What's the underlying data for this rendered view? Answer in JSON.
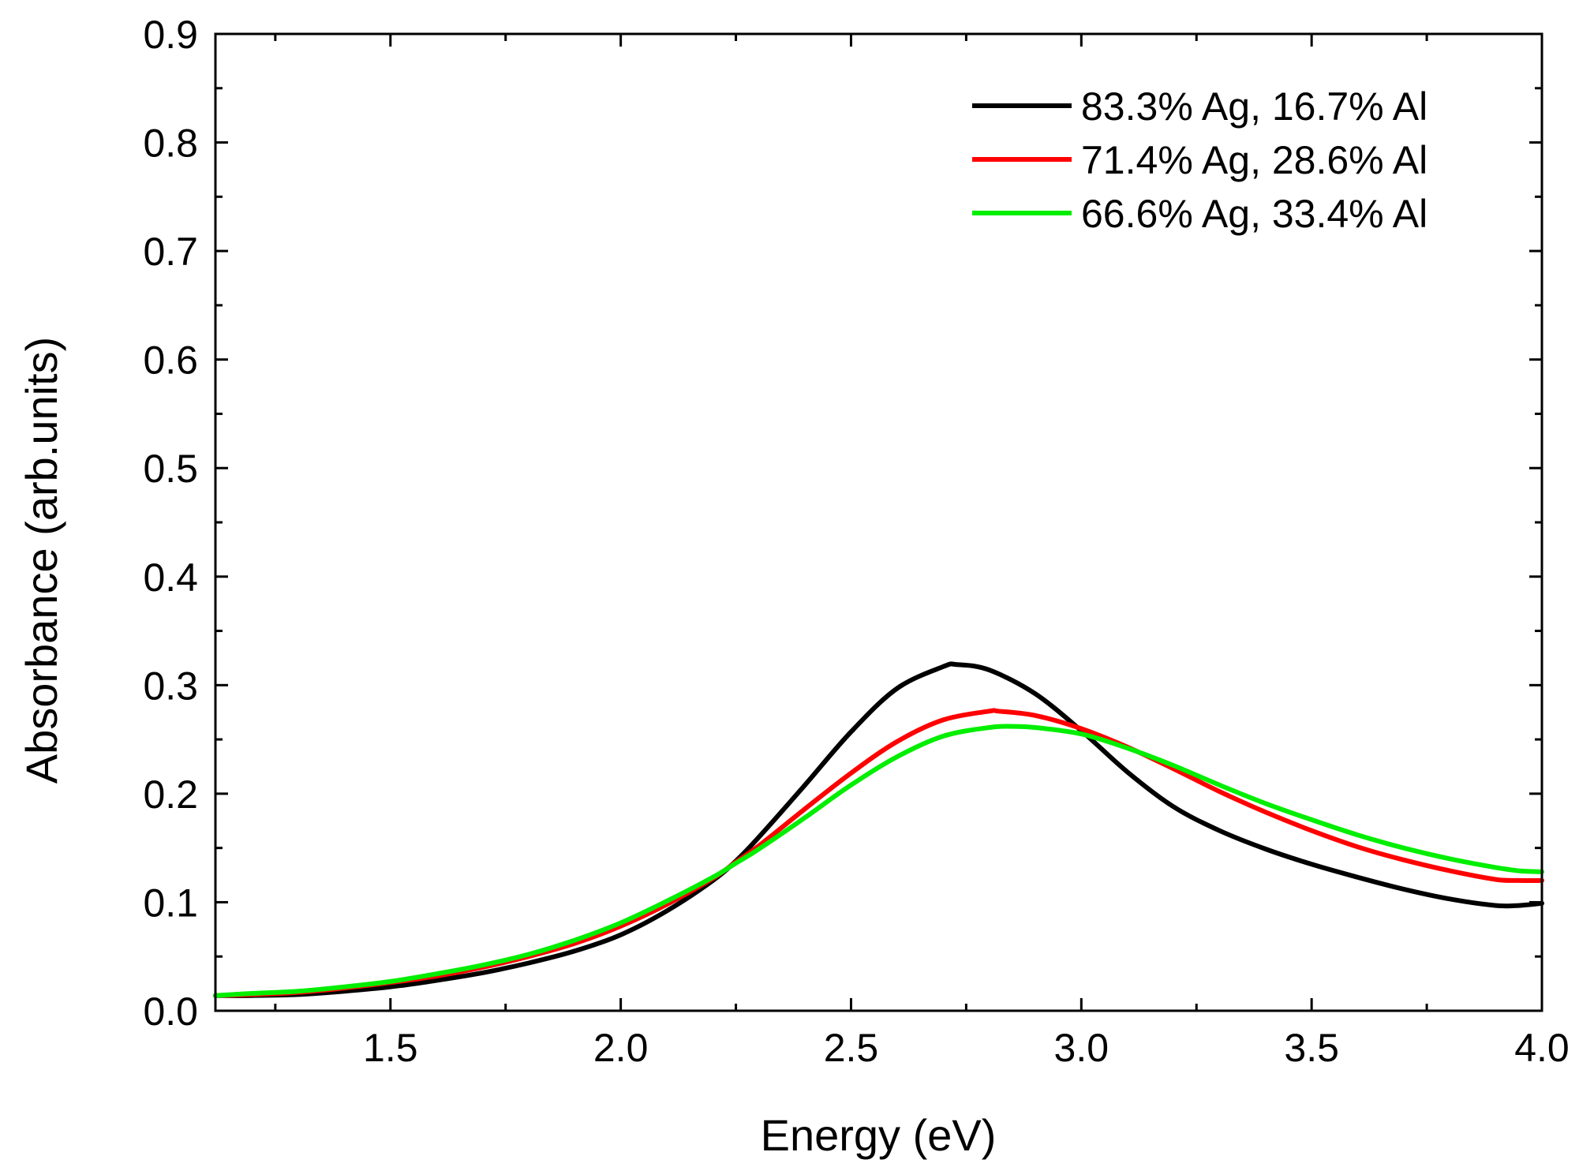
{
  "chart_data": {
    "type": "line",
    "title": "",
    "xlabel": "Energy (eV)",
    "ylabel": "Absorbance (arb.units)",
    "xlim": [
      1.12,
      4.0
    ],
    "ylim": [
      0.0,
      0.9
    ],
    "x_major_ticks": [
      1.5,
      2.0,
      2.5,
      3.0,
      3.5,
      4.0
    ],
    "x_tick_labels": [
      "1.5",
      "2.0",
      "2.5",
      "3.0",
      "3.5",
      "4.0"
    ],
    "x_minor_ticks": [
      1.25,
      1.75,
      2.25,
      2.75,
      3.25,
      3.75
    ],
    "y_major_ticks": [
      0.0,
      0.1,
      0.2,
      0.3,
      0.4,
      0.5,
      0.6,
      0.7,
      0.8,
      0.9
    ],
    "y_tick_labels": [
      "0.0",
      "0.1",
      "0.2",
      "0.3",
      "0.4",
      "0.5",
      "0.6",
      "0.7",
      "0.8",
      "0.9"
    ],
    "y_minor_ticks": [
      0.05,
      0.15,
      0.25,
      0.35,
      0.45,
      0.55,
      0.65,
      0.75,
      0.85
    ],
    "grid": false,
    "legend_position": "top-right",
    "series": [
      {
        "name": "83.3% Ag, 16.7% Al",
        "color": "#000000",
        "x": [
          1.12,
          1.2,
          1.3,
          1.4,
          1.5,
          1.6,
          1.7,
          1.8,
          1.9,
          2.0,
          2.1,
          2.2,
          2.25,
          2.3,
          2.4,
          2.5,
          2.6,
          2.7,
          2.73,
          2.8,
          2.9,
          3.0,
          3.1,
          3.2,
          3.3,
          3.4,
          3.5,
          3.6,
          3.7,
          3.8,
          3.9,
          3.95,
          4.0
        ],
        "y": [
          0.014,
          0.014,
          0.015,
          0.018,
          0.022,
          0.028,
          0.035,
          0.044,
          0.055,
          0.07,
          0.092,
          0.12,
          0.138,
          0.16,
          0.208,
          0.257,
          0.297,
          0.317,
          0.319,
          0.314,
          0.292,
          0.258,
          0.22,
          0.188,
          0.166,
          0.149,
          0.135,
          0.123,
          0.112,
          0.103,
          0.097,
          0.097,
          0.099
        ]
      },
      {
        "name": "71.4% Ag, 28.6% Al",
        "color": "#ff0000",
        "x": [
          1.12,
          1.2,
          1.3,
          1.4,
          1.5,
          1.6,
          1.7,
          1.8,
          1.9,
          2.0,
          2.1,
          2.2,
          2.25,
          2.3,
          2.4,
          2.5,
          2.6,
          2.7,
          2.8,
          2.82,
          2.9,
          3.0,
          3.1,
          3.2,
          3.3,
          3.4,
          3.5,
          3.6,
          3.7,
          3.8,
          3.9,
          3.95,
          4.0
        ],
        "y": [
          0.014,
          0.015,
          0.017,
          0.021,
          0.026,
          0.032,
          0.04,
          0.05,
          0.062,
          0.078,
          0.098,
          0.122,
          0.137,
          0.152,
          0.186,
          0.219,
          0.248,
          0.268,
          0.276,
          0.276,
          0.272,
          0.26,
          0.243,
          0.223,
          0.202,
          0.183,
          0.166,
          0.151,
          0.139,
          0.129,
          0.121,
          0.12,
          0.12
        ]
      },
      {
        "name": "66.6% Ag, 33.4% Al",
        "color": "#00ee00",
        "x": [
          1.12,
          1.2,
          1.3,
          1.4,
          1.5,
          1.6,
          1.7,
          1.8,
          1.9,
          2.0,
          2.1,
          2.2,
          2.25,
          2.3,
          2.4,
          2.5,
          2.6,
          2.7,
          2.8,
          2.85,
          2.9,
          3.0,
          3.1,
          3.2,
          3.3,
          3.4,
          3.5,
          3.6,
          3.7,
          3.8,
          3.9,
          3.95,
          4.0
        ],
        "y": [
          0.014,
          0.016,
          0.018,
          0.022,
          0.027,
          0.034,
          0.042,
          0.052,
          0.065,
          0.081,
          0.101,
          0.123,
          0.136,
          0.149,
          0.178,
          0.208,
          0.234,
          0.253,
          0.261,
          0.262,
          0.261,
          0.255,
          0.242,
          0.226,
          0.208,
          0.191,
          0.176,
          0.162,
          0.15,
          0.14,
          0.132,
          0.129,
          0.128
        ]
      }
    ]
  }
}
